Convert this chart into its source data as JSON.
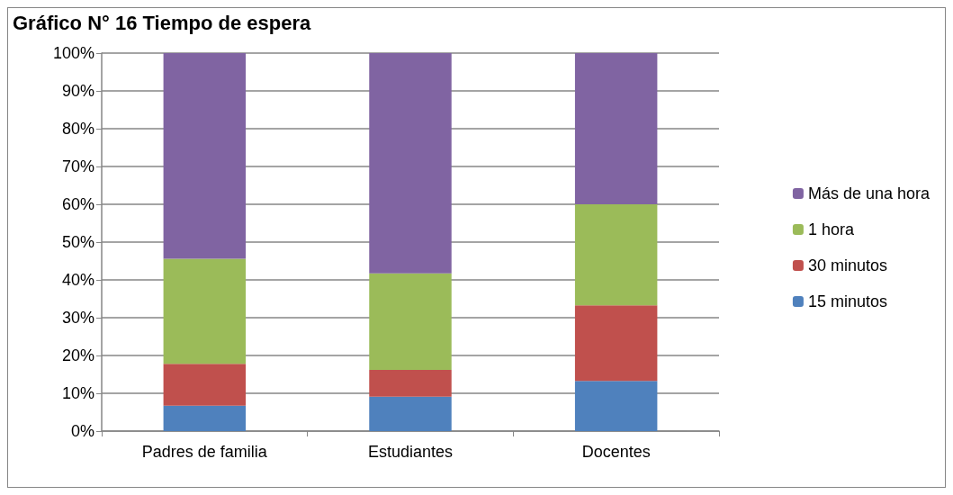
{
  "chart_data": {
    "type": "bar",
    "stacked": true,
    "title": "Gráfico N° 16 Tiempo de espera",
    "categories": [
      "Padres de familia",
      "Estudiantes",
      "Docentes"
    ],
    "series": [
      {
        "name": "15 minutos",
        "color": "#4f81bd",
        "values": [
          6.7,
          9.1,
          13.3
        ]
      },
      {
        "name": "30 minutos",
        "color": "#c0504d",
        "values": [
          11.1,
          7.1,
          20
        ]
      },
      {
        "name": "1 hora",
        "color": "#9bbb59",
        "values": [
          27.8,
          25.5,
          26.7
        ]
      },
      {
        "name": "Más de una hora",
        "color": "#8064a2",
        "values": [
          54.4,
          58.3,
          40
        ]
      }
    ],
    "ylim": [
      0,
      100
    ],
    "yticks": [
      {
        "value": 0,
        "label": "0%"
      },
      {
        "value": 10,
        "label": "10%"
      },
      {
        "value": 20,
        "label": "20%"
      },
      {
        "value": 30,
        "label": "30%"
      },
      {
        "value": 40,
        "label": "40%"
      },
      {
        "value": 50,
        "label": "50%"
      },
      {
        "value": 60,
        "label": "60%"
      },
      {
        "value": 70,
        "label": "70%"
      },
      {
        "value": 80,
        "label": "80%"
      },
      {
        "value": 90,
        "label": "90%"
      },
      {
        "value": 100,
        "label": "100%"
      }
    ],
    "grid": "y",
    "legend": "right"
  }
}
